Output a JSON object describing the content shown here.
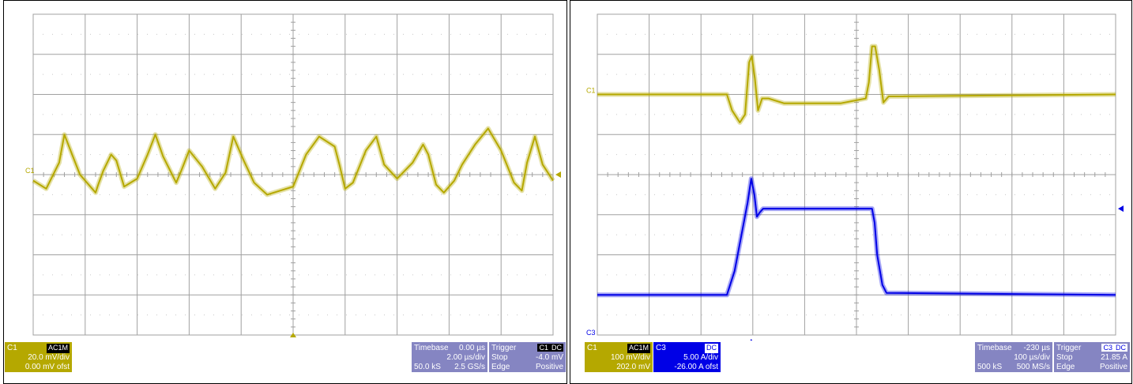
{
  "colors": {
    "ch1": "#b5a800",
    "ch3": "#0000e6",
    "info_panel": "#8585c2",
    "grid": "#a0a0a0"
  },
  "left_scope": {
    "channel_marker": "C1",
    "ch1": {
      "name": "C1",
      "coupling": "AC1M",
      "scale": "20.0 mV/div",
      "offset": "0.00 mV ofst"
    },
    "timebase": {
      "label": "Timebase",
      "delay": "0.00 µs",
      "scale": "2.00 µs/div",
      "samples": "50.0 kS",
      "rate": "2.5 GS/s"
    },
    "trigger": {
      "label": "Trigger",
      "source_tags": [
        "C1",
        "DC"
      ],
      "mode": "Stop",
      "level": "-4.0 mV",
      "type": "Edge",
      "slope": "Positive"
    }
  },
  "right_scope": {
    "channel_markers": {
      "c1": "C1",
      "c3": "C3"
    },
    "ch1": {
      "name": "C1",
      "coupling": "AC1M",
      "scale": "100 mV/div",
      "offset": "202.0 mV"
    },
    "ch3": {
      "name": "C3",
      "coupling": "DC",
      "scale": "5.00 A/div",
      "offset": "-26.00 A ofst"
    },
    "timebase": {
      "label": "Timebase",
      "delay": "-230 µs",
      "scale": "100 µs/div",
      "samples": "500 kS",
      "rate": "500 MS/s"
    },
    "trigger": {
      "label": "Trigger",
      "source_tags": [
        "C3",
        "DC"
      ],
      "mode": "Stop",
      "level": "21.85 A",
      "type": "Edge",
      "slope": "Positive"
    }
  },
  "chart_data": [
    {
      "type": "line",
      "title": "",
      "xlabel": "",
      "ylabel": "",
      "grid": true,
      "x_divisions": 10,
      "y_divisions": 8,
      "xlim": [
        -10,
        10
      ],
      "ylim": [
        -80,
        80
      ],
      "x_unit": "µs",
      "y_unit": "mV",
      "series": [
        {
          "channel": "C1",
          "x": [
            -10,
            -9.5,
            -9.0,
            -8.8,
            -8.5,
            -8.2,
            -7.6,
            -7.5,
            -7.3,
            -7.0,
            -6.8,
            -6.5,
            -6.0,
            -5.6,
            -5.3,
            -5.0,
            -4.5,
            -4.3,
            -4.0,
            -3.5,
            -3.0,
            -2.6,
            -2.3,
            -2.1,
            -1.9,
            -1.5,
            -1.0,
            0.0,
            0.5,
            1.0,
            1.6,
            1.8,
            2.0,
            2.3,
            2.8,
            3.2,
            3.5,
            4.0,
            4.6,
            5.0,
            5.2,
            5.5,
            5.8,
            6.2,
            6.5,
            7.0,
            7.5,
            8.0,
            8.5,
            8.8,
            9.0,
            9.3,
            9.6,
            10.0
          ],
          "y": [
            -3,
            -7,
            6,
            20,
            10,
            0,
            -9,
            -5,
            2,
            10,
            7,
            -6,
            -2,
            10,
            20,
            9,
            -4,
            2,
            12,
            4,
            -7,
            1,
            19,
            13,
            7,
            -4,
            -10,
            -6,
            10,
            19,
            14,
            4,
            -7,
            -4,
            12,
            19,
            5,
            -2,
            6,
            15,
            10,
            -5,
            -9,
            -3,
            5,
            15,
            23,
            12,
            -4,
            -8,
            6,
            19,
            5,
            -3
          ]
        }
      ]
    },
    {
      "type": "line",
      "title": "",
      "xlabel": "",
      "ylabel": "",
      "grid": true,
      "x_divisions": 10,
      "y_divisions": 8,
      "xlim": [
        -730,
        270
      ],
      "ylim": [
        -4,
        4
      ],
      "x_unit": "µs",
      "y_unit": "div",
      "series": [
        {
          "channel": "C1",
          "x": [
            -730,
            -480,
            -470,
            -455,
            -445,
            -437,
            -432,
            -426,
            -420,
            -412,
            -400,
            -370,
            -260,
            -212,
            -206,
            -200,
            -194,
            -186,
            -178,
            -168,
            270
          ],
          "y": [
            2.0,
            2.0,
            1.6,
            1.3,
            1.5,
            2.8,
            2.95,
            2.4,
            1.6,
            1.9,
            1.9,
            1.78,
            1.78,
            1.9,
            2.3,
            3.2,
            3.2,
            2.6,
            1.8,
            1.95,
            2.0
          ]
        },
        {
          "channel": "C3",
          "x": [
            -730,
            -480,
            -465,
            -440,
            -433,
            -427,
            -422,
            -417,
            -410,
            -200,
            -195,
            -190,
            -180,
            -172,
            270
          ],
          "y": [
            -3.0,
            -3.0,
            -2.4,
            -0.7,
            -0.1,
            -0.5,
            -1.05,
            -0.95,
            -0.85,
            -0.85,
            -1.2,
            -2.0,
            -2.75,
            -2.95,
            -3.0
          ]
        }
      ]
    }
  ]
}
